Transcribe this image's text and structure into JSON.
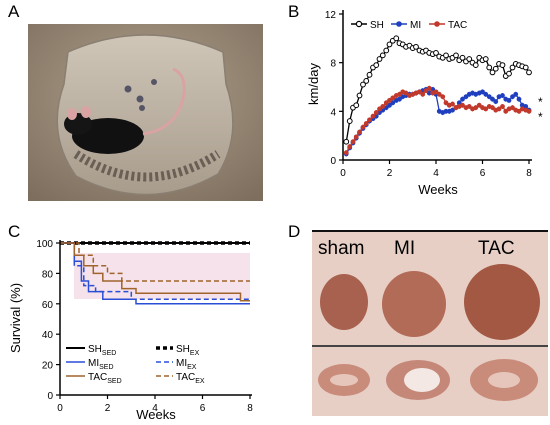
{
  "panels": {
    "a": {
      "letter": "A"
    },
    "b": {
      "letter": "B"
    },
    "c": {
      "letter": "C"
    },
    "d": {
      "letter": "D",
      "labels": [
        "sham",
        "MI",
        "TAC"
      ]
    }
  },
  "colors": {
    "sh": "#000000",
    "mi": "#1f3fbf",
    "tac": "#c0392b",
    "tac_surv": "#a0642c",
    "mi_surv": "#2a4fd6"
  },
  "chart_data": [
    {
      "type": "line",
      "title": "",
      "xlabel": "Weeks",
      "ylabel": "km/day",
      "xlim": [
        0,
        8
      ],
      "ylim": [
        0,
        12
      ],
      "xticks": [
        0,
        2,
        4,
        6,
        8
      ],
      "yticks": [
        0,
        4,
        8,
        12
      ],
      "legend": [
        "SH",
        "MI",
        "TAC"
      ],
      "legend_position": "top",
      "annotations": [
        "*",
        "*"
      ],
      "x": [
        0.14,
        0.29,
        0.43,
        0.57,
        0.71,
        0.86,
        1.0,
        1.14,
        1.29,
        1.43,
        1.57,
        1.71,
        1.86,
        2.0,
        2.14,
        2.29,
        2.43,
        2.57,
        2.71,
        2.86,
        3.0,
        3.14,
        3.29,
        3.43,
        3.57,
        3.71,
        3.86,
        4.0,
        4.14,
        4.29,
        4.43,
        4.57,
        4.71,
        4.86,
        5.0,
        5.14,
        5.29,
        5.43,
        5.57,
        5.71,
        5.86,
        6.0,
        6.14,
        6.29,
        6.43,
        6.57,
        6.71,
        6.86,
        7.0,
        7.14,
        7.29,
        7.43,
        7.57,
        7.71,
        7.86,
        8.0
      ],
      "series": [
        {
          "name": "SH",
          "values": [
            1.5,
            3.2,
            4.3,
            4.5,
            5.3,
            6.2,
            6.5,
            7.0,
            7.6,
            7.8,
            8.3,
            8.6,
            9.0,
            9.5,
            9.8,
            10.0,
            9.6,
            9.5,
            9.3,
            9.4,
            9.2,
            9.3,
            9.0,
            8.9,
            9.0,
            8.8,
            8.7,
            8.8,
            8.5,
            8.4,
            8.6,
            8.3,
            8.4,
            8.6,
            8.2,
            8.4,
            8.1,
            8.3,
            8.0,
            7.8,
            8.4,
            8.2,
            8.3,
            7.6,
            7.2,
            7.5,
            7.9,
            7.8,
            6.9,
            7.1,
            7.6,
            7.9,
            7.8,
            7.7,
            7.6,
            7.2
          ]
        },
        {
          "name": "MI",
          "values": [
            0.5,
            1.0,
            1.4,
            1.8,
            2.2,
            2.6,
            2.9,
            3.2,
            3.4,
            3.6,
            3.9,
            4.1,
            4.3,
            4.5,
            4.7,
            4.9,
            5.0,
            5.2,
            5.3,
            5.4,
            5.4,
            5.5,
            5.6,
            5.7,
            5.8,
            5.5,
            5.8,
            5.4,
            4.0,
            3.9,
            4.0,
            4.0,
            4.1,
            4.3,
            4.7,
            5.0,
            5.2,
            5.4,
            5.5,
            5.4,
            5.5,
            5.6,
            5.4,
            5.2,
            5.0,
            4.8,
            5.2,
            5.3,
            5.0,
            4.9,
            5.2,
            5.4,
            5.0,
            4.5,
            4.4,
            4.1
          ]
        },
        {
          "name": "TAC",
          "values": [
            0.6,
            1.1,
            1.5,
            1.9,
            2.3,
            2.7,
            3.0,
            3.3,
            3.6,
            3.9,
            4.2,
            4.4,
            4.7,
            4.9,
            5.1,
            5.3,
            5.4,
            5.6,
            5.5,
            5.3,
            5.4,
            5.5,
            5.6,
            5.4,
            5.7,
            5.9,
            5.5,
            5.6,
            5.4,
            5.2,
            4.7,
            4.5,
            4.6,
            4.3,
            4.4,
            4.5,
            4.3,
            4.4,
            4.2,
            4.3,
            4.5,
            4.3,
            4.2,
            4.4,
            4.3,
            4.1,
            4.2,
            4.4,
            4.0,
            4.2,
            4.3,
            4.1,
            4.0,
            4.2,
            4.1,
            4.0
          ]
        }
      ]
    },
    {
      "type": "line",
      "title": "",
      "xlabel": "Weeks",
      "ylabel": "Survival (%)",
      "xlim": [
        0,
        8
      ],
      "ylim": [
        0,
        100
      ],
      "xticks": [
        0,
        2,
        4,
        6,
        8
      ],
      "yticks": [
        0,
        20,
        40,
        60,
        80,
        100
      ],
      "ytick_labels": [
        "0",
        "20",
        "40",
        "60",
        "80",
        "100"
      ],
      "legend": [
        {
          "base": "SH",
          "sub": "SED"
        },
        {
          "base": "SH",
          "sub": "EX"
        },
        {
          "base": "MI",
          "sub": "SED"
        },
        {
          "base": "MI",
          "sub": "EX"
        },
        {
          "base": "TAC",
          "sub": "SED"
        },
        {
          "base": "TAC",
          "sub": "EX"
        }
      ],
      "series": [
        {
          "name": "SH SED",
          "style": "solid",
          "points": [
            [
              0,
              100
            ],
            [
              8,
              100
            ]
          ]
        },
        {
          "name": "SH EX",
          "style": "dotted",
          "points": [
            [
              0,
              100
            ],
            [
              8,
              100
            ]
          ]
        },
        {
          "name": "MI SED",
          "style": "solid",
          "points": [
            [
              0,
              100
            ],
            [
              0.6,
              100
            ],
            [
              0.6,
              88
            ],
            [
              0.9,
              88
            ],
            [
              0.9,
              75
            ],
            [
              1.2,
              75
            ],
            [
              1.2,
              68
            ],
            [
              1.8,
              68
            ],
            [
              1.8,
              63
            ],
            [
              3.2,
              63
            ],
            [
              3.2,
              60
            ],
            [
              8,
              60
            ]
          ]
        },
        {
          "name": "MI EX",
          "style": "dashed",
          "points": [
            [
              0,
              100
            ],
            [
              0.6,
              100
            ],
            [
              0.6,
              85
            ],
            [
              1.0,
              85
            ],
            [
              1.0,
              72
            ],
            [
              1.5,
              72
            ],
            [
              1.5,
              68
            ],
            [
              3.0,
              68
            ],
            [
              3.0,
              63
            ],
            [
              8,
              63
            ]
          ]
        },
        {
          "name": "TAC SED",
          "style": "solid",
          "points": [
            [
              0,
              100
            ],
            [
              0.6,
              100
            ],
            [
              0.6,
              92
            ],
            [
              1.0,
              92
            ],
            [
              1.0,
              85
            ],
            [
              1.4,
              85
            ],
            [
              1.4,
              80
            ],
            [
              1.8,
              80
            ],
            [
              1.8,
              75
            ],
            [
              2.6,
              75
            ],
            [
              2.6,
              70
            ],
            [
              3.2,
              70
            ],
            [
              3.2,
              67
            ],
            [
              7.6,
              67
            ],
            [
              7.6,
              62
            ],
            [
              8,
              62
            ]
          ]
        },
        {
          "name": "TAC EX",
          "style": "dashed",
          "points": [
            [
              0,
              100
            ],
            [
              0.8,
              100
            ],
            [
              0.8,
              92
            ],
            [
              1.4,
              92
            ],
            [
              1.4,
              85
            ],
            [
              2.0,
              85
            ],
            [
              2.0,
              80
            ],
            [
              2.6,
              80
            ],
            [
              2.6,
              75
            ],
            [
              8,
              75
            ]
          ]
        }
      ]
    }
  ]
}
